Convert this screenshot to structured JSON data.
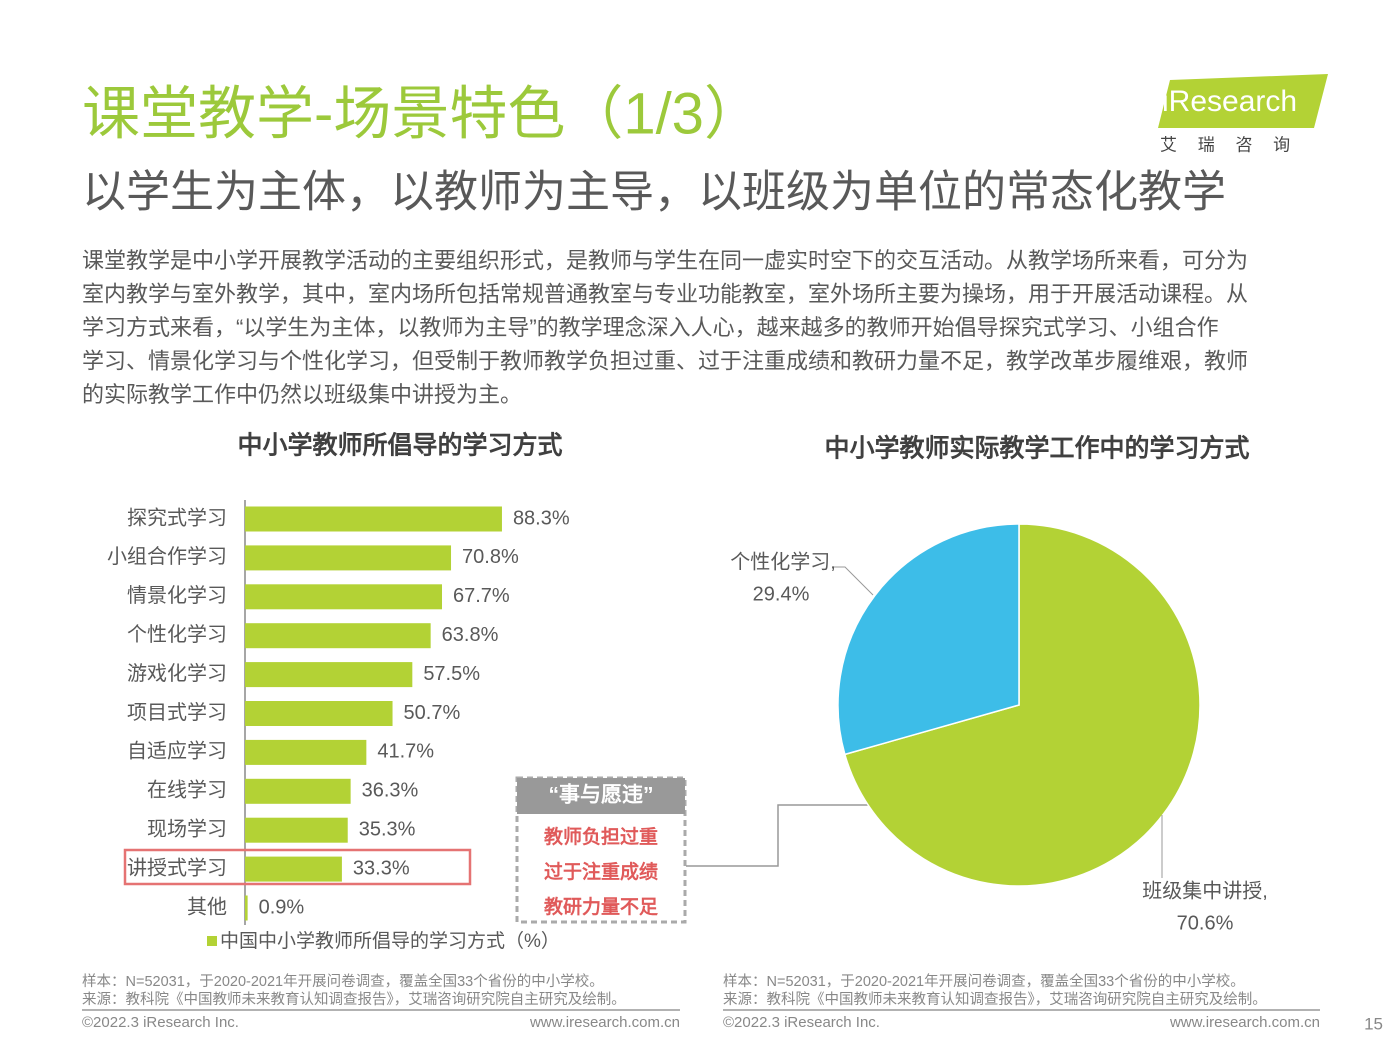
{
  "header": {
    "title": "课堂教学-场景特色（1/3）",
    "subtitle": "以学生为主体，以教师为主导，以班级为单位的常态化教学",
    "logo": "iResearch",
    "logo_sub": "艾 瑞 咨 询"
  },
  "intro": [
    "课堂教学是中小学开展教学活动的主要组织形式，是教师与学生在同一虚实时空下的交互活动。从教学场所来看，可分为",
    "室内教学与室外教学，其中，室内场所包括常规普通教室与专业功能教室，室外场所主要为操场，用于开展活动课程。从",
    "学习方式来看，“以学生为主体，以教师为主导”的教学理念深入人心，越来越多的教师开始倡导探究式学习、小组合作",
    "学习、情景化学习与个性化学习，但受制于教师教学负担过重、过于注重成绩和教研力量不足，教学改革步履维艰，教师",
    "的实际教学工作中仍然以班级集中讲授为主。"
  ],
  "chart_data": [
    {
      "type": "hbar",
      "title": "中小学教师所倡导的学习方式",
      "categories": [
        "探究式学习",
        "小组合作学习",
        "情景化学习",
        "个性化学习",
        "游戏化学习",
        "项目式学习",
        "自适应学习",
        "在线学习",
        "现场学习",
        "讲授式学习",
        "其他"
      ],
      "series": [
        {
          "name": "中国中小学教师所倡导的学习方式（%）",
          "color": "#b3d235",
          "values": [
            88.3,
            70.8,
            67.7,
            63.8,
            57.5,
            50.7,
            41.7,
            36.3,
            35.3,
            33.3,
            0.9
          ],
          "value_labels": [
            "88.3%",
            "70.8%",
            "67.7%",
            "63.8%",
            "57.5%",
            "50.7%",
            "41.7%",
            "36.3%",
            "35.3%",
            "33.3%",
            "0.9%"
          ]
        }
      ]
    },
    {
      "type": "pie",
      "title": "中小学教师实际教学工作中的学习方式",
      "categories": [
        "班级集中讲授,",
        "个性化学习,"
      ],
      "values": [
        70.6,
        29.4
      ],
      "value_labels": [
        "70.6%",
        "29.4%"
      ],
      "colors": [
        "#b3d235",
        "#3dbde8"
      ]
    }
  ],
  "callout": {
    "title": "“事与愿违”",
    "items": [
      "教师负担过重",
      "过于注重成绩",
      "教研力量不足"
    ]
  },
  "notes": [
    {
      "sample": "样本：N=52031，于2020-2021年开展问卷调查，覆盖全国33个省份的中小学校。",
      "source": "来源：教科院《中国教师未来教育认知调查报告》，艾瑞咨询研究院自主研究及绘制。",
      "copyright": "©2022.3 iResearch Inc.",
      "url": "www.iresearch.com.cn"
    },
    {
      "sample": "样本：N=52031，于2020-2021年开展问卷调查，覆盖全国33个省份的中小学校。",
      "source": "来源：教科院《中国教师未来教育认知调查报告》，艾瑞咨询研究院自主研究及绘制。",
      "copyright": "©2022.3 iResearch Inc.",
      "url": "www.iresearch.com.cn"
    }
  ],
  "page": "15"
}
